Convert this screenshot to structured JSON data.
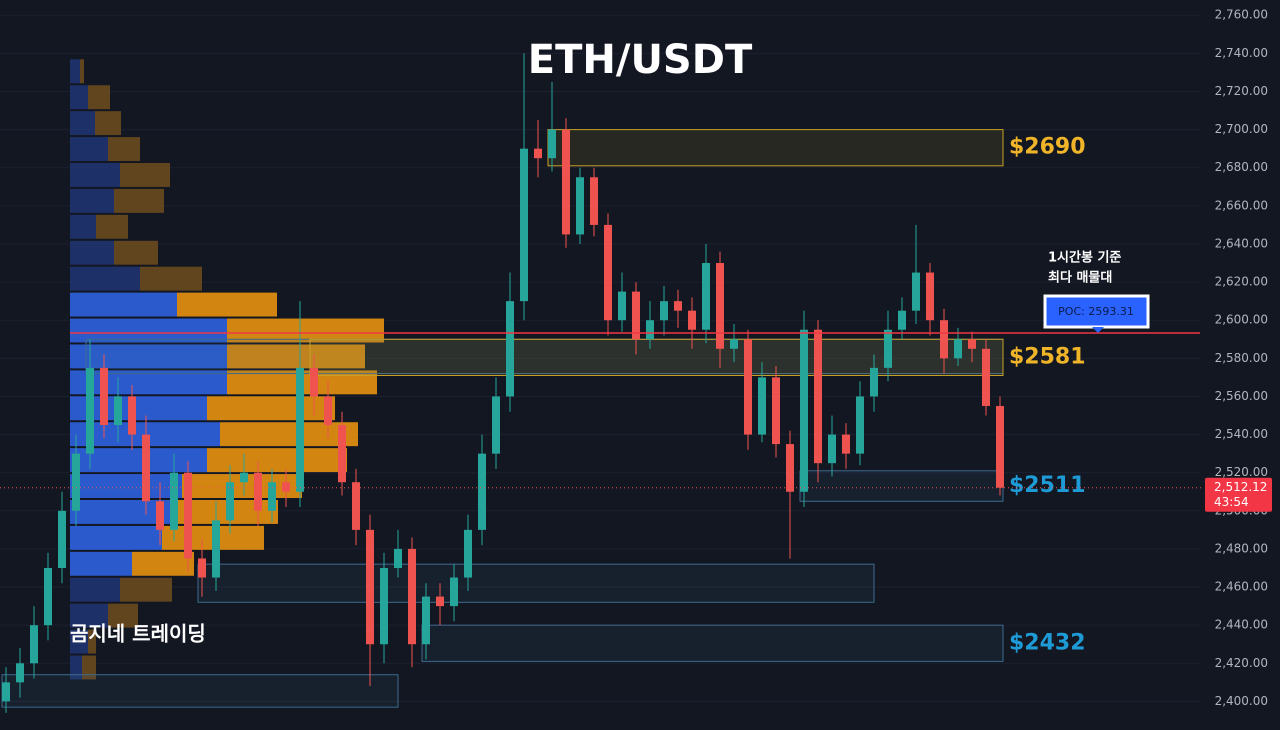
{
  "chart_data": {
    "type": "candlestick",
    "title": "ETH/USDT",
    "watermark": "곰지네 트레이딩",
    "annotation": [
      "1시간봉 기준",
      "최다 매물대"
    ],
    "ylim": [
      2385,
      2768
    ],
    "yticks": [
      {
        "value": 2400,
        "label": "2,400.00"
      },
      {
        "value": 2420,
        "label": "2,420.00"
      },
      {
        "value": 2440,
        "label": "2,440.00"
      },
      {
        "value": 2460,
        "label": "2,460.00"
      },
      {
        "value": 2480,
        "label": "2,480.00"
      },
      {
        "value": 2500,
        "label": "2,500.00"
      },
      {
        "value": 2520,
        "label": "2,520.00"
      },
      {
        "value": 2540,
        "label": "2,540.00"
      },
      {
        "value": 2560,
        "label": "2,560.00"
      },
      {
        "value": 2580,
        "label": "2,580.00"
      },
      {
        "value": 2600,
        "label": "2,600.00"
      },
      {
        "value": 2620,
        "label": "2,620.00"
      },
      {
        "value": 2640,
        "label": "2,640.00"
      },
      {
        "value": 2660,
        "label": "2,660.00"
      },
      {
        "value": 2680,
        "label": "2,680.00"
      },
      {
        "value": 2700,
        "label": "2,700.00"
      },
      {
        "value": 2720,
        "label": "2,720.00"
      },
      {
        "value": 2740,
        "label": "2,740.00"
      },
      {
        "value": 2760,
        "label": "2,760.00"
      }
    ],
    "grid": true,
    "up_color": "#26a69a",
    "down_color": "#ef5350",
    "open": [
      2400,
      2410,
      2420,
      2440,
      2470,
      2500,
      2530,
      2575,
      2545,
      2560,
      2540,
      2505,
      2490,
      2520,
      2475,
      2465,
      2495,
      2515,
      2520,
      2500,
      2515,
      2510,
      2575,
      2560,
      2545,
      2515,
      2490,
      2430,
      2470,
      2480,
      2430,
      2455,
      2450,
      2465,
      2490,
      2530,
      2560,
      2610,
      2690,
      2685,
      2700,
      2645,
      2675,
      2650,
      2600,
      2615,
      2590,
      2600,
      2610,
      2605,
      2595,
      2630,
      2585,
      2590,
      2540,
      2570,
      2535,
      2510,
      2595,
      2525,
      2540,
      2530,
      2560,
      2575,
      2595,
      2605,
      2625,
      2600,
      2580,
      2590,
      2585,
      2555
    ],
    "high": [
      2418,
      2428,
      2450,
      2478,
      2510,
      2540,
      2590,
      2582,
      2570,
      2566,
      2550,
      2515,
      2530,
      2526,
      2485,
      2505,
      2524,
      2530,
      2526,
      2522,
      2522,
      2610,
      2582,
      2568,
      2552,
      2522,
      2498,
      2478,
      2490,
      2486,
      2462,
      2462,
      2472,
      2498,
      2540,
      2570,
      2625,
      2740,
      2705,
      2725,
      2706,
      2680,
      2680,
      2656,
      2625,
      2620,
      2610,
      2618,
      2616,
      2612,
      2640,
      2636,
      2598,
      2595,
      2578,
      2576,
      2542,
      2605,
      2600,
      2550,
      2546,
      2568,
      2582,
      2605,
      2612,
      2650,
      2630,
      2606,
      2596,
      2594,
      2590,
      2560
    ],
    "low": [
      2394,
      2402,
      2412,
      2432,
      2462,
      2492,
      2522,
      2538,
      2536,
      2532,
      2498,
      2482,
      2484,
      2468,
      2455,
      2458,
      2488,
      2508,
      2492,
      2494,
      2502,
      2502,
      2550,
      2538,
      2508,
      2482,
      2408,
      2420,
      2465,
      2418,
      2422,
      2440,
      2442,
      2458,
      2482,
      2522,
      2552,
      2600,
      2675,
      2678,
      2638,
      2640,
      2644,
      2592,
      2594,
      2582,
      2585,
      2592,
      2596,
      2585,
      2588,
      2575,
      2578,
      2532,
      2536,
      2528,
      2475,
      2502,
      2515,
      2518,
      2522,
      2524,
      2552,
      2568,
      2590,
      2598,
      2592,
      2572,
      2576,
      2578,
      2550,
      2508
    ],
    "close": [
      2410,
      2420,
      2440,
      2470,
      2500,
      2530,
      2575,
      2545,
      2560,
      2540,
      2505,
      2490,
      2520,
      2475,
      2465,
      2495,
      2515,
      2520,
      2500,
      2515,
      2510,
      2575,
      2560,
      2545,
      2515,
      2490,
      2430,
      2470,
      2480,
      2430,
      2455,
      2450,
      2465,
      2490,
      2530,
      2560,
      2610,
      2690,
      2685,
      2700,
      2645,
      2675,
      2650,
      2600,
      2615,
      2590,
      2600,
      2610,
      2605,
      2595,
      2630,
      2585,
      2590,
      2540,
      2570,
      2535,
      2510,
      2595,
      2525,
      2540,
      2530,
      2560,
      2575,
      2595,
      2605,
      2625,
      2600,
      2580,
      2590,
      2585,
      2555,
      2512.12
    ],
    "last_price": {
      "value": 2512.12,
      "label": "2,512.12"
    },
    "countdown": "43:54",
    "poc": {
      "value": 2593.31,
      "label": "POC: 2593.31",
      "color": "#f23645"
    },
    "profile": {
      "row_size": 13.6,
      "prices": [
        2723.8,
        2710.2,
        2696.6,
        2683.0,
        2669.4,
        2655.8,
        2642.2,
        2628.6,
        2615.0,
        2601.4,
        2587.8,
        2574.2,
        2560.6,
        2547.0,
        2533.4,
        2519.8,
        2506.2,
        2492.6,
        2479.0,
        2465.4,
        2451.8,
        2438.2,
        2424.6,
        2411.0
      ],
      "up": [
        10,
        18,
        25,
        38,
        50,
        44,
        26,
        44,
        70,
        107,
        157,
        157,
        157,
        137,
        150,
        137,
        112,
        100,
        92,
        62,
        50,
        38,
        18,
        12
      ],
      "down": [
        4,
        22,
        26,
        32,
        50,
        50,
        32,
        44,
        62,
        100,
        157,
        138,
        150,
        128,
        138,
        140,
        120,
        108,
        102,
        62,
        52,
        30,
        8,
        14
      ],
      "value_area": [
        2465,
        2610
      ],
      "up_color": "#2f62e0",
      "down_color": "#e8920f",
      "up_dim_color": "#1f3470",
      "down_dim_color": "#6a4a1e"
    },
    "zones": [
      {
        "high": 2700,
        "low": 2681,
        "start": 39,
        "color": "#c9a227",
        "label": "$2690",
        "label_color": "#f0b429"
      },
      {
        "high": 2590,
        "low": 2572,
        "start": 6,
        "color": "#3d6a8f"
      },
      {
        "high": 2590,
        "low": 2571,
        "start": 22,
        "color": "#c9a227",
        "label": "$2581",
        "label_color": "#f0b429"
      },
      {
        "high": 2521,
        "low": 2505,
        "start": 57,
        "color": "#3d6a8f",
        "label": "$2511",
        "label_color": "#1e9bd7"
      },
      {
        "high": 2472,
        "low": 2452,
        "start": 14,
        "end": 62,
        "color": "#3d6a8f"
      },
      {
        "high": 2440,
        "low": 2421,
        "start": 30,
        "color": "#3d6a8f",
        "label": "$2432",
        "label_color": "#1e9bd7"
      },
      {
        "high": 2414,
        "low": 2397,
        "start": 0,
        "end": 28,
        "color": "#3d6a8f"
      }
    ]
  }
}
